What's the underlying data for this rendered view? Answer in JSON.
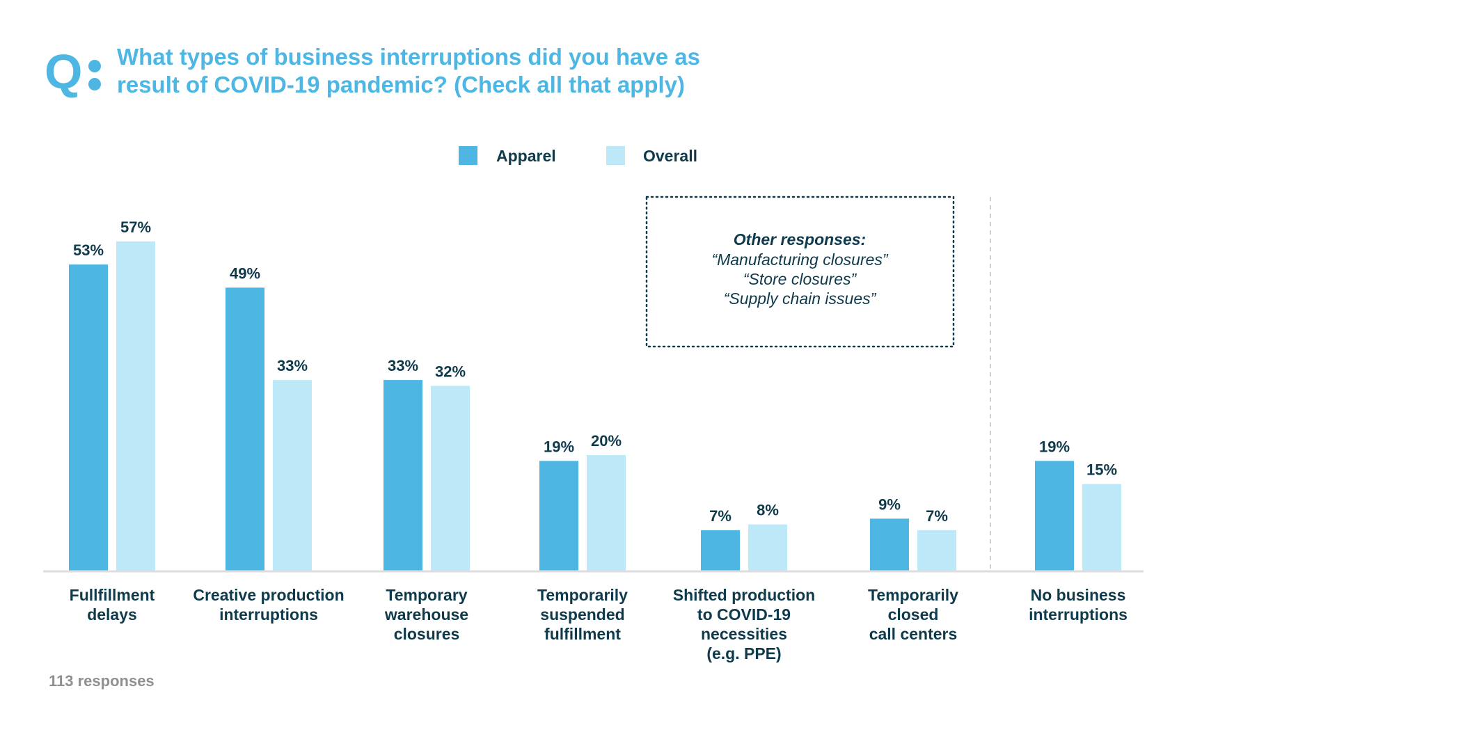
{
  "page": {
    "question_mark": "Q",
    "footer": "113 responses"
  },
  "colors": {
    "title": "#4db6e3",
    "text_dark": "#0e3a4c",
    "apparel": "#4db6e3",
    "overall": "#bde8f7",
    "axis": "#dddddd",
    "divider": "#cfcfcf",
    "footer": "#909090"
  },
  "chart_data": {
    "type": "bar",
    "title": [
      "What types of business interruptions did you have as",
      "result of COVID-19 pandemic? (Check all that apply)"
    ],
    "xlabel": "",
    "ylabel": "",
    "ylim": [
      0,
      60
    ],
    "grid": false,
    "legend_placement": "top-center",
    "categories": [
      [
        "Fullfillment",
        "delays"
      ],
      [
        "Creative production",
        "interruptions"
      ],
      [
        "Temporary",
        "warehouse",
        "closures"
      ],
      [
        "Temporarily",
        "suspended",
        "fulfillment"
      ],
      [
        "Shifted production",
        "to COVID-19",
        "necessities",
        "(e.g. PPE)"
      ],
      [
        "Temporarily",
        "closed",
        "call centers"
      ],
      [
        "No business",
        "interruptions"
      ]
    ],
    "series": [
      {
        "name": "Apparel",
        "values": [
          53,
          49,
          33,
          19,
          7,
          9,
          19
        ],
        "labels": [
          "53%",
          "49%",
          "33%",
          "19%",
          "7%",
          "9%",
          "19%"
        ]
      },
      {
        "name": "Overall",
        "values": [
          57,
          33,
          32,
          20,
          8,
          7,
          15
        ],
        "labels": [
          "57%",
          "33%",
          "32%",
          "20%",
          "8%",
          "7%",
          "15%"
        ]
      }
    ],
    "annotation": {
      "heading": "Other responses:",
      "lines": [
        "“Manufacturing closures”",
        "“Store closures”",
        "“Supply chain issues”"
      ]
    }
  }
}
